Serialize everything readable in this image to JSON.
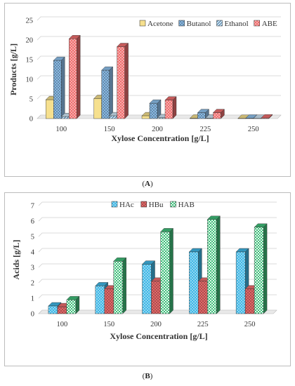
{
  "panels": {
    "a": {
      "label_letter": "A"
    },
    "b": {
      "label_letter": "B"
    }
  },
  "chart_data": [
    {
      "type": "bar",
      "xlabel": "Xylose Concentration [g/L]",
      "ylabel": "Products [g/L]",
      "categories": [
        "100",
        "150",
        "200",
        "225",
        "250"
      ],
      "ylim": [
        0,
        25
      ],
      "yticks": [
        0,
        5,
        10,
        15,
        20,
        25
      ],
      "grid": true,
      "legend_position": "top-right",
      "series": [
        {
          "name": "Acetone",
          "values": [
            4.8,
            5.1,
            0.7,
            0.1,
            0.05
          ],
          "color": "#f6e08e",
          "pattern": "solid"
        },
        {
          "name": "Butanol",
          "values": [
            14.8,
            12.3,
            3.9,
            1.5,
            0.1
          ],
          "color": "#8fc2ee",
          "pattern": "crosshatch"
        },
        {
          "name": "Ethanol",
          "values": [
            0.5,
            0.7,
            0.2,
            0.1,
            0.05
          ],
          "color": "#cfe6f6",
          "pattern": "diagonal"
        },
        {
          "name": "ABE",
          "values": [
            20.3,
            18.3,
            4.7,
            1.5,
            0.15
          ],
          "color": "#ef6e6e",
          "pattern": "dots"
        }
      ]
    },
    {
      "type": "bar",
      "xlabel": "Xylose Concentration [g/L]",
      "ylabel": "Acids [g/L]",
      "categories": [
        "100",
        "150",
        "200",
        "225",
        "250"
      ],
      "ylim": [
        0,
        7
      ],
      "yticks": [
        0,
        1,
        2,
        3,
        4,
        5,
        6,
        7
      ],
      "grid": true,
      "legend_position": "top-left",
      "series": [
        {
          "name": "HAc",
          "values": [
            0.5,
            1.8,
            3.2,
            4.0,
            4.0
          ],
          "color": "#3fb7e6",
          "pattern": "dots"
        },
        {
          "name": "HBu",
          "values": [
            0.45,
            1.6,
            2.1,
            2.1,
            1.6
          ],
          "color": "#ef6e6e",
          "pattern": "crosshatch"
        },
        {
          "name": "HAB",
          "values": [
            0.9,
            3.4,
            5.3,
            6.1,
            5.6
          ],
          "color": "#3fbf7a",
          "pattern": "checker"
        }
      ]
    }
  ]
}
